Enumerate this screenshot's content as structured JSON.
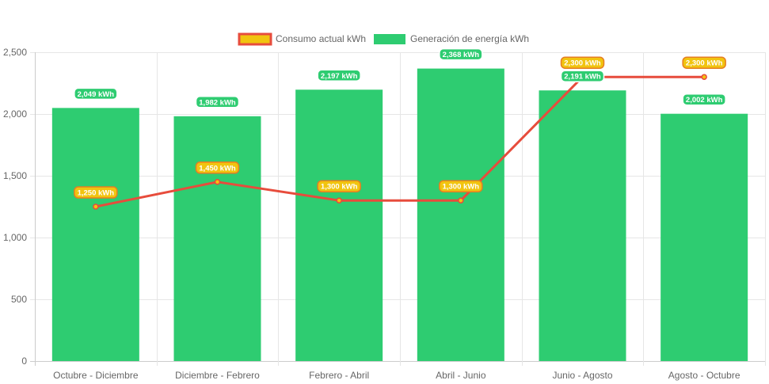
{
  "chart_data": {
    "type": "bar",
    "categories": [
      "Octubre - Diciembre",
      "Diciembre - Febrero",
      "Febrero - Abril",
      "Abril - Junio",
      "Junio - Agosto",
      "Agosto - Octubre"
    ],
    "series": [
      {
        "name": "Generación de energía kWh",
        "type": "bar",
        "values": [
          2049,
          1982,
          2197,
          2368,
          2191,
          2002
        ],
        "labels": [
          "2,049 kWh",
          "1,982 kWh",
          "2,197 kWh",
          "2,368 kWh",
          "2,191 kWh",
          "2,002 kWh"
        ],
        "color": "#2ecc71"
      },
      {
        "name": "Consumo actual kWh",
        "type": "line",
        "values": [
          1250,
          1450,
          1300,
          1300,
          2300,
          2300
        ],
        "labels": [
          "1,250 kWh",
          "1,450 kWh",
          "1,300 kWh",
          "1,300 kWh",
          "2,300 kWh",
          "2,300 kWh"
        ],
        "color": "#e74c3c",
        "fill": "#f1c40f"
      }
    ],
    "ylim": [
      0,
      2500
    ],
    "yticks": [
      0,
      500,
      1000,
      1500,
      2000,
      2500
    ],
    "ytick_labels": [
      "0",
      "500",
      "1,000",
      "1,500",
      "2,000",
      "2,500"
    ],
    "grid": true,
    "legend_position": "top-center"
  }
}
